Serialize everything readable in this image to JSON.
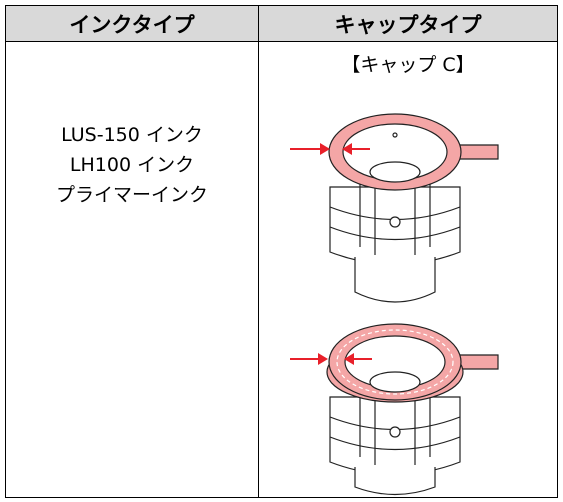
{
  "table": {
    "header": [
      "インクタイプ",
      "キャップタイプ"
    ],
    "rows": [
      [
        [
          "LUS-150 インク",
          "LH100 インク",
          "プライマーインク"
        ],
        "【キャップ C】"
      ]
    ]
  }
}
